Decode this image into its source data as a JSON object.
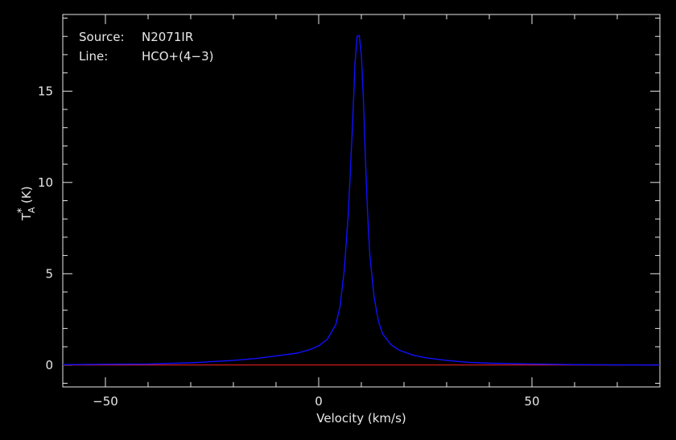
{
  "chart_data": {
    "type": "line",
    "xlabel": "Velocity (km/s)",
    "ylabel": "T",
    "ylabel_sub": "A",
    "ylabel_sup": "*",
    "ylabel_unit": "(K)",
    "xlim": [
      -60,
      80
    ],
    "ylim": [
      -1.2,
      19.2
    ],
    "x_ticks": [
      -50,
      0,
      50
    ],
    "x_tick_labels": [
      "−50",
      "0",
      "50"
    ],
    "y_ticks": [
      0,
      5,
      10,
      15
    ],
    "y_tick_labels": [
      "0",
      "5",
      "10",
      "15"
    ],
    "annotations": [
      {
        "key": "Source:",
        "value": "N2071IR"
      },
      {
        "key": "Line:",
        "value": "HCO+(4−3)"
      }
    ],
    "baseline": {
      "y": 0,
      "color": "#ff2020"
    },
    "series": [
      {
        "color": "#1010ff",
        "x": [
          -60,
          -40,
          -30,
          -20,
          -15,
          -10,
          -5,
          -2,
          0,
          2,
          4,
          5,
          6,
          7,
          8,
          8.5,
          9,
          9.5,
          10,
          10.5,
          11,
          11.5,
          12,
          13,
          14,
          15,
          17,
          19,
          22,
          25,
          30,
          35,
          40,
          50,
          60,
          80
        ],
        "y": [
          0.02,
          0.05,
          0.12,
          0.25,
          0.35,
          0.5,
          0.65,
          0.85,
          1.05,
          1.4,
          2.2,
          3.2,
          5.2,
          8.5,
          13.5,
          16.5,
          18.0,
          18.05,
          17.0,
          14.5,
          11.0,
          8.2,
          6.0,
          3.7,
          2.4,
          1.7,
          1.1,
          0.8,
          0.55,
          0.4,
          0.25,
          0.15,
          0.1,
          0.05,
          0.02,
          0.0
        ]
      }
    ],
    "grid": false
  }
}
